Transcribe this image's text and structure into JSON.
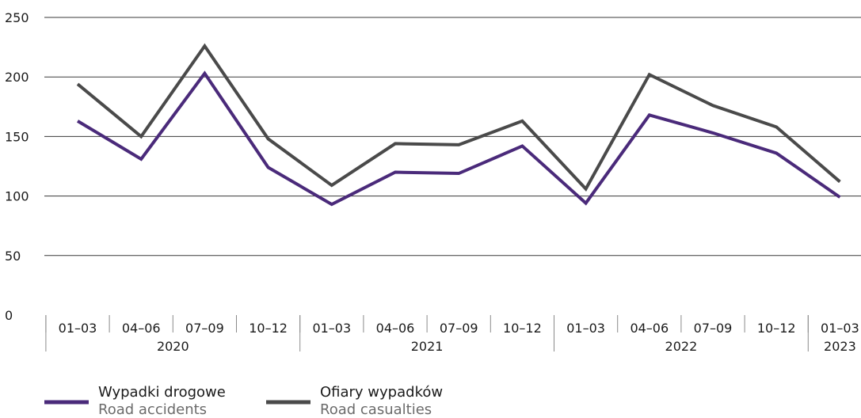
{
  "chart_data": {
    "type": "line",
    "title": "",
    "xlabel": "",
    "ylabel": "",
    "ylim": [
      0,
      250
    ],
    "yticks": [
      0,
      50,
      100,
      150,
      200,
      250
    ],
    "grid": true,
    "legend_position": "bottom-left",
    "categories": [
      "01–03",
      "04–06",
      "07–09",
      "10–12",
      "01–03",
      "04–06",
      "07–09",
      "10–12",
      "01–03",
      "04–06",
      "07–09",
      "10–12",
      "01–03"
    ],
    "year_groups": [
      {
        "label": "2020",
        "count": 4
      },
      {
        "label": "2021",
        "count": 4
      },
      {
        "label": "2022",
        "count": 4
      },
      {
        "label": "2023",
        "count": 1
      }
    ],
    "series": [
      {
        "name": "Wypadki drogowe",
        "name_en": "Road accidents",
        "color": "#4a2a7a",
        "values": [
          163,
          131,
          203,
          124,
          93,
          120,
          119,
          142,
          94,
          168,
          153,
          136,
          99
        ]
      },
      {
        "name": "Ofiary wypadków",
        "name_en": "Road casualties",
        "color": "#4a4a4a",
        "values": [
          194,
          150,
          226,
          148,
          109,
          144,
          143,
          163,
          106,
          202,
          176,
          158,
          112
        ]
      }
    ]
  }
}
